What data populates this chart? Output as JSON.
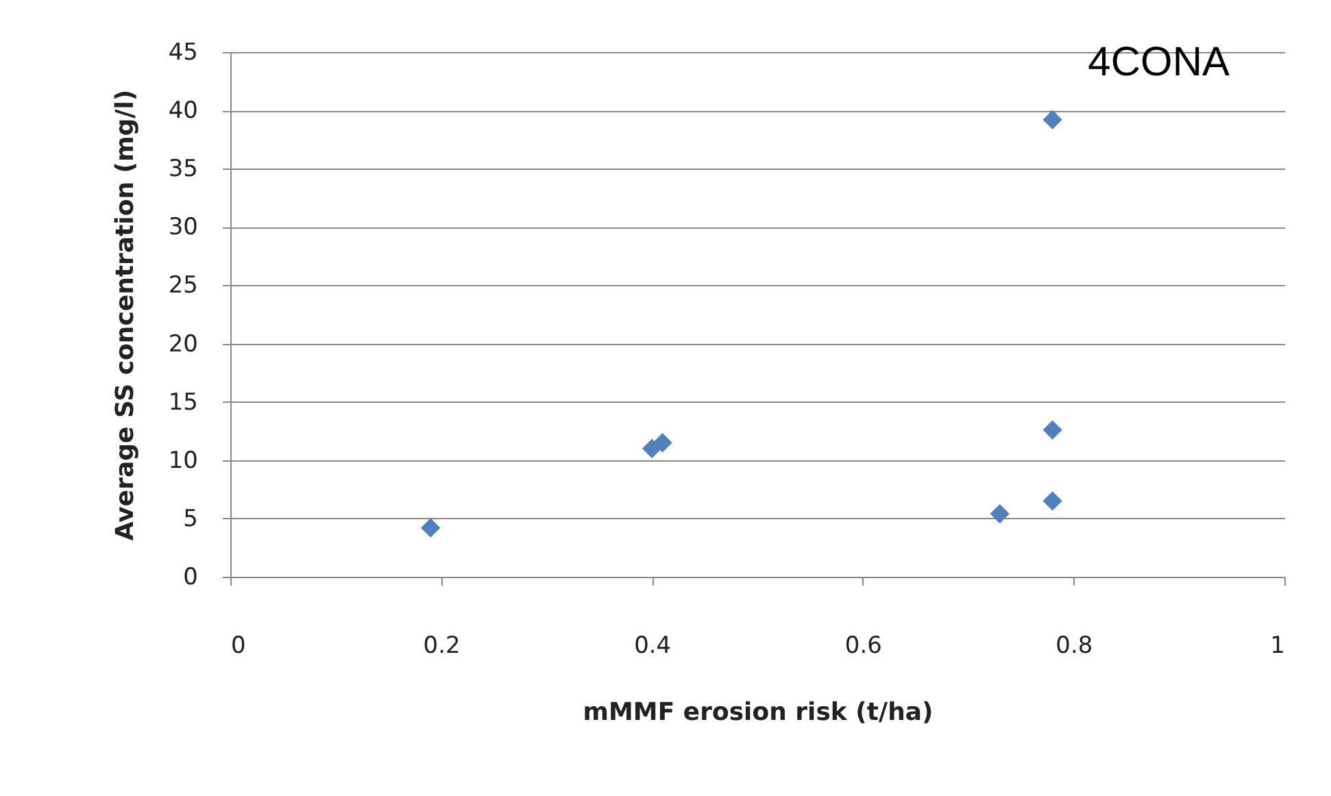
{
  "chart_data": {
    "type": "scatter",
    "xlabel": "mMMF erosion risk (t/ha)",
    "ylabel": "Average SS concentration (mg/l)",
    "annotations": [
      "4CONA"
    ],
    "x": [
      0.19,
      0.4,
      0.41,
      0.73,
      0.78,
      0.78,
      0.78
    ],
    "series": [
      {
        "color": "#4f81bd",
        "values": [
          4.2,
          11.0,
          11.5,
          5.4,
          6.5,
          12.6,
          39.2
        ]
      }
    ],
    "xlim": [
      0,
      1
    ],
    "xticks": [
      0,
      0.2,
      0.4,
      0.6,
      0.8,
      1
    ],
    "ylim": [
      0,
      45
    ],
    "yticks": [
      0,
      5,
      10,
      15,
      20,
      25,
      30,
      35,
      40,
      45
    ],
    "grid": "y",
    "marker": "diamond",
    "legend": false
  }
}
